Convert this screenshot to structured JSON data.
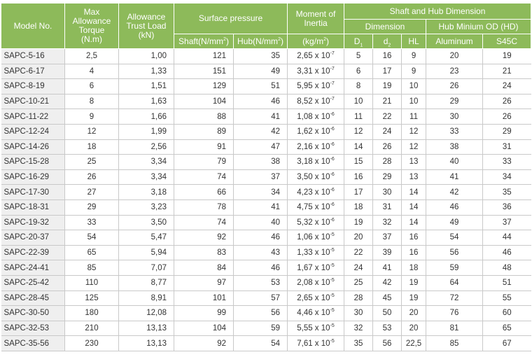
{
  "headers": {
    "model": "Model No.",
    "torque": [
      "Max",
      "Allowance",
      "Torque",
      "(N.m)"
    ],
    "trust": [
      "Allowance",
      "Trust Load",
      "(kN)"
    ],
    "surface_pressure": "Surface pressure",
    "shaft_pressure": "Shaft(N/mm",
    "hub_pressure": "Hub(N/mm",
    "squared": "2",
    "pressure_close": ")",
    "moment": [
      "Moment of",
      "Inertia"
    ],
    "moment_unit": "(kg/m",
    "moment_unit_close": ")",
    "shaft_hub": "Shaft and Hub Dimension",
    "dimension": "Dimension",
    "hub_od": "Hub Minium OD (HD)",
    "d1": "D",
    "d1_sub": "1",
    "d2": "d",
    "d2_sub": "2",
    "hl": "HL",
    "aluminum": "Aluminum",
    "s45c": "S45C"
  },
  "rows": [
    {
      "model": "SAPC-5-16",
      "torque": "2,5",
      "trust": "1,00",
      "shaft": "121",
      "hub": "35",
      "mi": "2,65 x 10",
      "exp": "-7",
      "d1": "5",
      "d2": "16",
      "hl": "9",
      "al": "20",
      "s45c": "19"
    },
    {
      "model": "SAPC-6-17",
      "torque": "4",
      "trust": "1,33",
      "shaft": "151",
      "hub": "49",
      "mi": "3,31 x 10",
      "exp": "-7",
      "d1": "6",
      "d2": "17",
      "hl": "9",
      "al": "23",
      "s45c": "21"
    },
    {
      "model": "SAPC-8-19",
      "torque": "6",
      "trust": "1,51",
      "shaft": "129",
      "hub": "51",
      "mi": "5,95 x 10",
      "exp": "-7",
      "d1": "8",
      "d2": "19",
      "hl": "10",
      "al": "26",
      "s45c": "24"
    },
    {
      "model": "SAPC-10-21",
      "torque": "8",
      "trust": "1,63",
      "shaft": "104",
      "hub": "46",
      "mi": "8,52 x 10",
      "exp": "-7",
      "d1": "10",
      "d2": "21",
      "hl": "10",
      "al": "29",
      "s45c": "26"
    },
    {
      "model": "SAPC-11-22",
      "torque": "9",
      "trust": "1,66",
      "shaft": "88",
      "hub": "41",
      "mi": "1,08 x 10",
      "exp": "-6",
      "d1": "11",
      "d2": "22",
      "hl": "11",
      "al": "30",
      "s45c": "26"
    },
    {
      "model": "SAPC-12-24",
      "torque": "12",
      "trust": "1,99",
      "shaft": "89",
      "hub": "42",
      "mi": "1,62 x 10",
      "exp": "-6",
      "d1": "12",
      "d2": "24",
      "hl": "12",
      "al": "33",
      "s45c": "29"
    },
    {
      "model": "SAPC-14-26",
      "torque": "18",
      "trust": "2,56",
      "shaft": "91",
      "hub": "47",
      "mi": "2,16 x 10",
      "exp": "-6",
      "d1": "14",
      "d2": "26",
      "hl": "12",
      "al": "38",
      "s45c": "31"
    },
    {
      "model": "SAPC-15-28",
      "torque": "25",
      "trust": "3,34",
      "shaft": "79",
      "hub": "38",
      "mi": "3,18 x 10",
      "exp": "-6",
      "d1": "15",
      "d2": "28",
      "hl": "13",
      "al": "40",
      "s45c": "33"
    },
    {
      "model": "SAPC-16-29",
      "torque": "26",
      "trust": "3,34",
      "shaft": "74",
      "hub": "37",
      "mi": "3,50 x 10",
      "exp": "-6",
      "d1": "16",
      "d2": "29",
      "hl": "13",
      "al": "41",
      "s45c": "34"
    },
    {
      "model": "SAPC-17-30",
      "torque": "27",
      "trust": "3,18",
      "shaft": "66",
      "hub": "34",
      "mi": "4,23 x 10",
      "exp": "-6",
      "d1": "17",
      "d2": "30",
      "hl": "14",
      "al": "42",
      "s45c": "35"
    },
    {
      "model": "SAPC-18-31",
      "torque": "29",
      "trust": "3,23",
      "shaft": "78",
      "hub": "41",
      "mi": "4,75 x 10",
      "exp": "-6",
      "d1": "18",
      "d2": "31",
      "hl": "14",
      "al": "46",
      "s45c": "36"
    },
    {
      "model": "SAPC-19-32",
      "torque": "33",
      "trust": "3,50",
      "shaft": "74",
      "hub": "40",
      "mi": "5,32 x 10",
      "exp": "-6",
      "d1": "19",
      "d2": "32",
      "hl": "14",
      "al": "49",
      "s45c": "37"
    },
    {
      "model": "SAPC-20-37",
      "torque": "54",
      "trust": "5,47",
      "shaft": "92",
      "hub": "46",
      "mi": "1,06 x 10",
      "exp": "-5",
      "d1": "20",
      "d2": "37",
      "hl": "16",
      "al": "54",
      "s45c": "44"
    },
    {
      "model": "SAPC-22-39",
      "torque": "65",
      "trust": "5,94",
      "shaft": "83",
      "hub": "43",
      "mi": "1,33 x 10",
      "exp": "-5",
      "d1": "22",
      "d2": "39",
      "hl": "16",
      "al": "56",
      "s45c": "46"
    },
    {
      "model": "SAPC-24-41",
      "torque": "85",
      "trust": "7,07",
      "shaft": "84",
      "hub": "46",
      "mi": "1,67 x 10",
      "exp": "-5",
      "d1": "24",
      "d2": "41",
      "hl": "18",
      "al": "59",
      "s45c": "48"
    },
    {
      "model": "SAPC-25-42",
      "torque": "110",
      "trust": "8,77",
      "shaft": "97",
      "hub": "53",
      "mi": "2,08 x 10",
      "exp": "-5",
      "d1": "25",
      "d2": "42",
      "hl": "19",
      "al": "64",
      "s45c": "51"
    },
    {
      "model": "SAPC-28-45",
      "torque": "125",
      "trust": "8,91",
      "shaft": "101",
      "hub": "57",
      "mi": "2,65 x 10",
      "exp": "-5",
      "d1": "28",
      "d2": "45",
      "hl": "19",
      "al": "72",
      "s45c": "55"
    },
    {
      "model": "SAPC-30-50",
      "torque": "180",
      "trust": "12,08",
      "shaft": "99",
      "hub": "56",
      "mi": "4,46 x 10",
      "exp": "-5",
      "d1": "30",
      "d2": "50",
      "hl": "20",
      "al": "76",
      "s45c": "60"
    },
    {
      "model": "SAPC-32-53",
      "torque": "210",
      "trust": "13,13",
      "shaft": "104",
      "hub": "59",
      "mi": "5,55 x 10",
      "exp": "-5",
      "d1": "32",
      "d2": "53",
      "hl": "20",
      "al": "81",
      "s45c": "65"
    },
    {
      "model": "SAPC-35-56",
      "torque": "230",
      "trust": "13,13",
      "shaft": "92",
      "hub": "54",
      "mi": "7,61 x 10",
      "exp": "-5",
      "d1": "35",
      "d2": "56",
      "hl": "22,5",
      "al": "85",
      "s45c": "67"
    }
  ]
}
